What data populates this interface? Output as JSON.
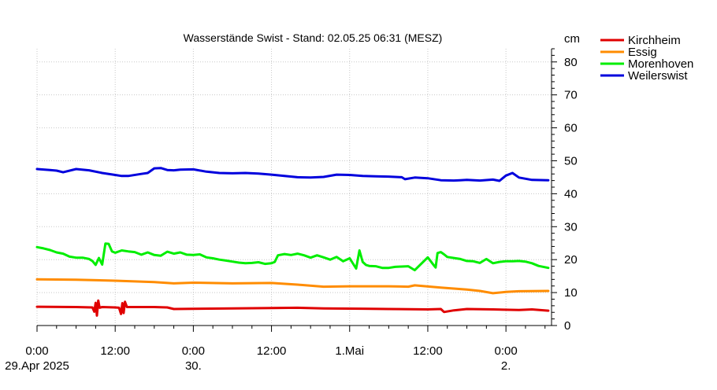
{
  "chart_data": {
    "type": "line",
    "title": "Wasserstände Swist - Stand: 02.05.25 06:31 (MESZ)",
    "ylabel": "cm",
    "xlabel": "",
    "ylim": [
      0,
      84
    ],
    "yticks": [
      0,
      10,
      20,
      30,
      40,
      50,
      60,
      70,
      80
    ],
    "xlim": [
      0,
      79
    ],
    "x_unit": "hours since 29.Apr 2025 0:00",
    "xticks": [
      {
        "x": 0,
        "top": "0:00",
        "bottom": "29.Apr 2025"
      },
      {
        "x": 12,
        "top": "12:00",
        "bottom": ""
      },
      {
        "x": 24,
        "top": "0:00",
        "bottom": "30."
      },
      {
        "x": 36,
        "top": "12:00",
        "bottom": ""
      },
      {
        "x": 48,
        "top": "1.Mai",
        "bottom": ""
      },
      {
        "x": 60,
        "top": "12:00",
        "bottom": ""
      },
      {
        "x": 72,
        "top": "0:00",
        "bottom": "2."
      }
    ],
    "grid": true,
    "legend_position": "top-right",
    "series": [
      {
        "name": "Kirchheim",
        "color": "#e00000",
        "x": [
          0,
          6,
          8.5,
          8.8,
          9.0,
          9.2,
          9.4,
          9.6,
          10,
          12,
          12.6,
          12.9,
          13.1,
          13.3,
          13.5,
          13.8,
          14,
          18,
          20,
          21,
          30,
          36,
          40,
          44,
          50,
          54,
          60,
          62,
          62.5,
          64,
          66,
          70,
          74,
          76,
          78.5
        ],
        "values": [
          5.7,
          5.6,
          5.5,
          4.2,
          6.9,
          3.0,
          7.6,
          5.4,
          5.6,
          5.5,
          5.4,
          3.5,
          6.8,
          3.8,
          7.2,
          5.6,
          5.6,
          5.6,
          5.5,
          5.0,
          5.2,
          5.3,
          5.4,
          5.2,
          5.1,
          5.0,
          4.9,
          5.0,
          4.1,
          4.6,
          5.0,
          4.9,
          4.7,
          4.9,
          4.5
        ]
      },
      {
        "name": "Essig",
        "color": "#ff8c00",
        "x": [
          0,
          6,
          12,
          18,
          21,
          24,
          30,
          36,
          40,
          44,
          48,
          54,
          57,
          58,
          62,
          66,
          68,
          70,
          72,
          74,
          78.5
        ],
        "values": [
          14.0,
          13.9,
          13.6,
          13.2,
          12.8,
          13.0,
          12.8,
          12.9,
          12.4,
          11.8,
          11.9,
          11.9,
          11.8,
          12.2,
          11.5,
          10.9,
          10.5,
          9.8,
          10.2,
          10.4,
          10.5
        ],
        "x_dummy": null
      },
      {
        "name": "Morenhoven",
        "color": "#00ee00",
        "x": [
          0,
          1,
          2,
          3,
          4,
          5,
          6,
          7,
          8,
          8.5,
          9,
          9.5,
          10,
          10.5,
          11,
          11.5,
          12,
          13,
          14,
          15,
          16,
          17,
          18,
          19,
          20,
          21,
          22,
          23,
          24,
          25,
          26,
          27,
          28,
          29,
          30,
          31,
          32,
          33,
          34,
          35,
          36,
          36.5,
          37,
          38,
          39,
          40,
          41,
          42,
          43,
          44,
          45,
          46,
          47,
          48,
          49,
          49.5,
          50,
          50.5,
          51,
          52,
          53,
          54,
          55,
          56,
          57,
          58,
          60,
          61,
          61.2,
          61.5,
          62,
          62.5,
          63,
          64,
          65,
          66,
          67,
          68,
          69,
          70,
          71,
          72,
          73,
          74,
          75,
          76,
          77,
          78.5
        ],
        "values": [
          23.8,
          23.4,
          22.9,
          22.2,
          21.8,
          20.9,
          20.6,
          20.6,
          20.2,
          19.6,
          18.4,
          20.5,
          18.5,
          24.9,
          24.8,
          22.5,
          22.1,
          22.8,
          22.5,
          22.3,
          21.5,
          22.2,
          21.4,
          21.2,
          22.4,
          21.8,
          22.2,
          21.5,
          21.4,
          21.6,
          20.7,
          20.4,
          20.0,
          19.7,
          19.4,
          19.1,
          18.9,
          19.0,
          19.2,
          18.7,
          18.9,
          19.3,
          21.3,
          21.7,
          21.4,
          21.8,
          21.3,
          20.6,
          21.3,
          20.7,
          20.0,
          20.8,
          19.5,
          20.4,
          17.3,
          22.8,
          19.3,
          18.4,
          18.1,
          18.0,
          17.5,
          17.5,
          17.8,
          17.9,
          18.0,
          16.8,
          20.7,
          18.1,
          17.6,
          22.0,
          22.3,
          21.6,
          20.8,
          20.5,
          20.2,
          19.6,
          19.5,
          19.0,
          20.2,
          18.9,
          19.3,
          19.5,
          19.5,
          19.6,
          19.4,
          18.9,
          18.1,
          17.5
        ]
      },
      {
        "name": "Weilerswist",
        "color": "#0000dd",
        "x": [
          0,
          2,
          3,
          4,
          6,
          8,
          10,
          12,
          13,
          14,
          16,
          17,
          18,
          19,
          20,
          21,
          22,
          24,
          26,
          28,
          30,
          32,
          34,
          36,
          38,
          40,
          42,
          44,
          46,
          48,
          50,
          52,
          54,
          56,
          56.5,
          58,
          60,
          62,
          64,
          65,
          66,
          68,
          70,
          71,
          72,
          73,
          74,
          76,
          78.5
        ],
        "values": [
          47.5,
          47.2,
          47.0,
          46.5,
          47.5,
          47.1,
          46.3,
          45.7,
          45.4,
          45.4,
          46.0,
          46.3,
          47.7,
          47.8,
          47.2,
          47.1,
          47.3,
          47.4,
          46.7,
          46.3,
          46.2,
          46.3,
          46.1,
          45.8,
          45.4,
          45.0,
          44.9,
          45.1,
          45.8,
          45.7,
          45.4,
          45.3,
          45.2,
          45.0,
          44.4,
          44.9,
          44.7,
          44.1,
          44.0,
          44.1,
          44.2,
          44.0,
          44.3,
          43.9,
          45.5,
          46.3,
          44.9,
          44.2,
          44.1
        ]
      }
    ]
  },
  "legend": [
    {
      "label": "Kirchheim",
      "color": "#e00000"
    },
    {
      "label": "Essig",
      "color": "#ff8c00"
    },
    {
      "label": "Morenhoven",
      "color": "#00ee00"
    },
    {
      "label": "Weilerswist",
      "color": "#0000dd"
    }
  ]
}
